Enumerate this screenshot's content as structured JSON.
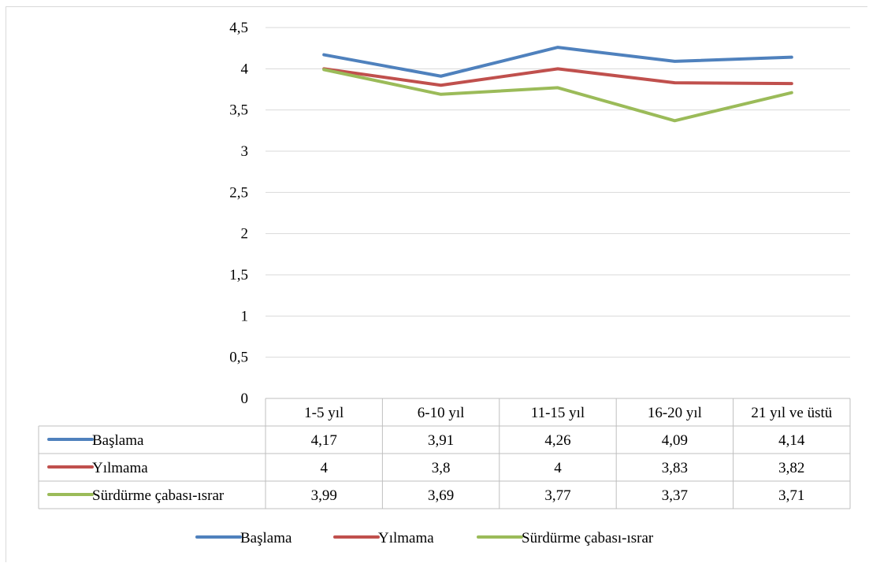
{
  "chart_data": {
    "type": "line",
    "categories": [
      "1-5 yıl",
      "6-10 yıl",
      "11-15 yıl",
      "16-20 yıl",
      "21 yıl ve üstü"
    ],
    "series": [
      {
        "name": "Başlama",
        "color": "#4f81bd",
        "values": [
          4.17,
          3.91,
          4.26,
          4.09,
          4.14
        ],
        "labels": [
          "4,17",
          "3,91",
          "4,26",
          "4,09",
          "4,14"
        ]
      },
      {
        "name": "Yılmama",
        "color": "#c0504d",
        "values": [
          4,
          3.8,
          4,
          3.83,
          3.82
        ],
        "labels": [
          "4",
          "3,8",
          "4",
          "3,83",
          "3,82"
        ]
      },
      {
        "name": "Sürdürme çabası-ısrar",
        "color": "#9bbb59",
        "values": [
          3.99,
          3.69,
          3.77,
          3.37,
          3.71
        ],
        "labels": [
          "3,99",
          "3,69",
          "3,77",
          "3,37",
          "3,71"
        ]
      }
    ],
    "ylim": [
      0,
      4.5
    ],
    "yticks": [
      "0",
      "0,5",
      "1",
      "1,5",
      "2",
      "2,5",
      "3",
      "3,5",
      "4",
      "4,5"
    ],
    "grid": true,
    "legend": "bottom",
    "data_table": true
  }
}
